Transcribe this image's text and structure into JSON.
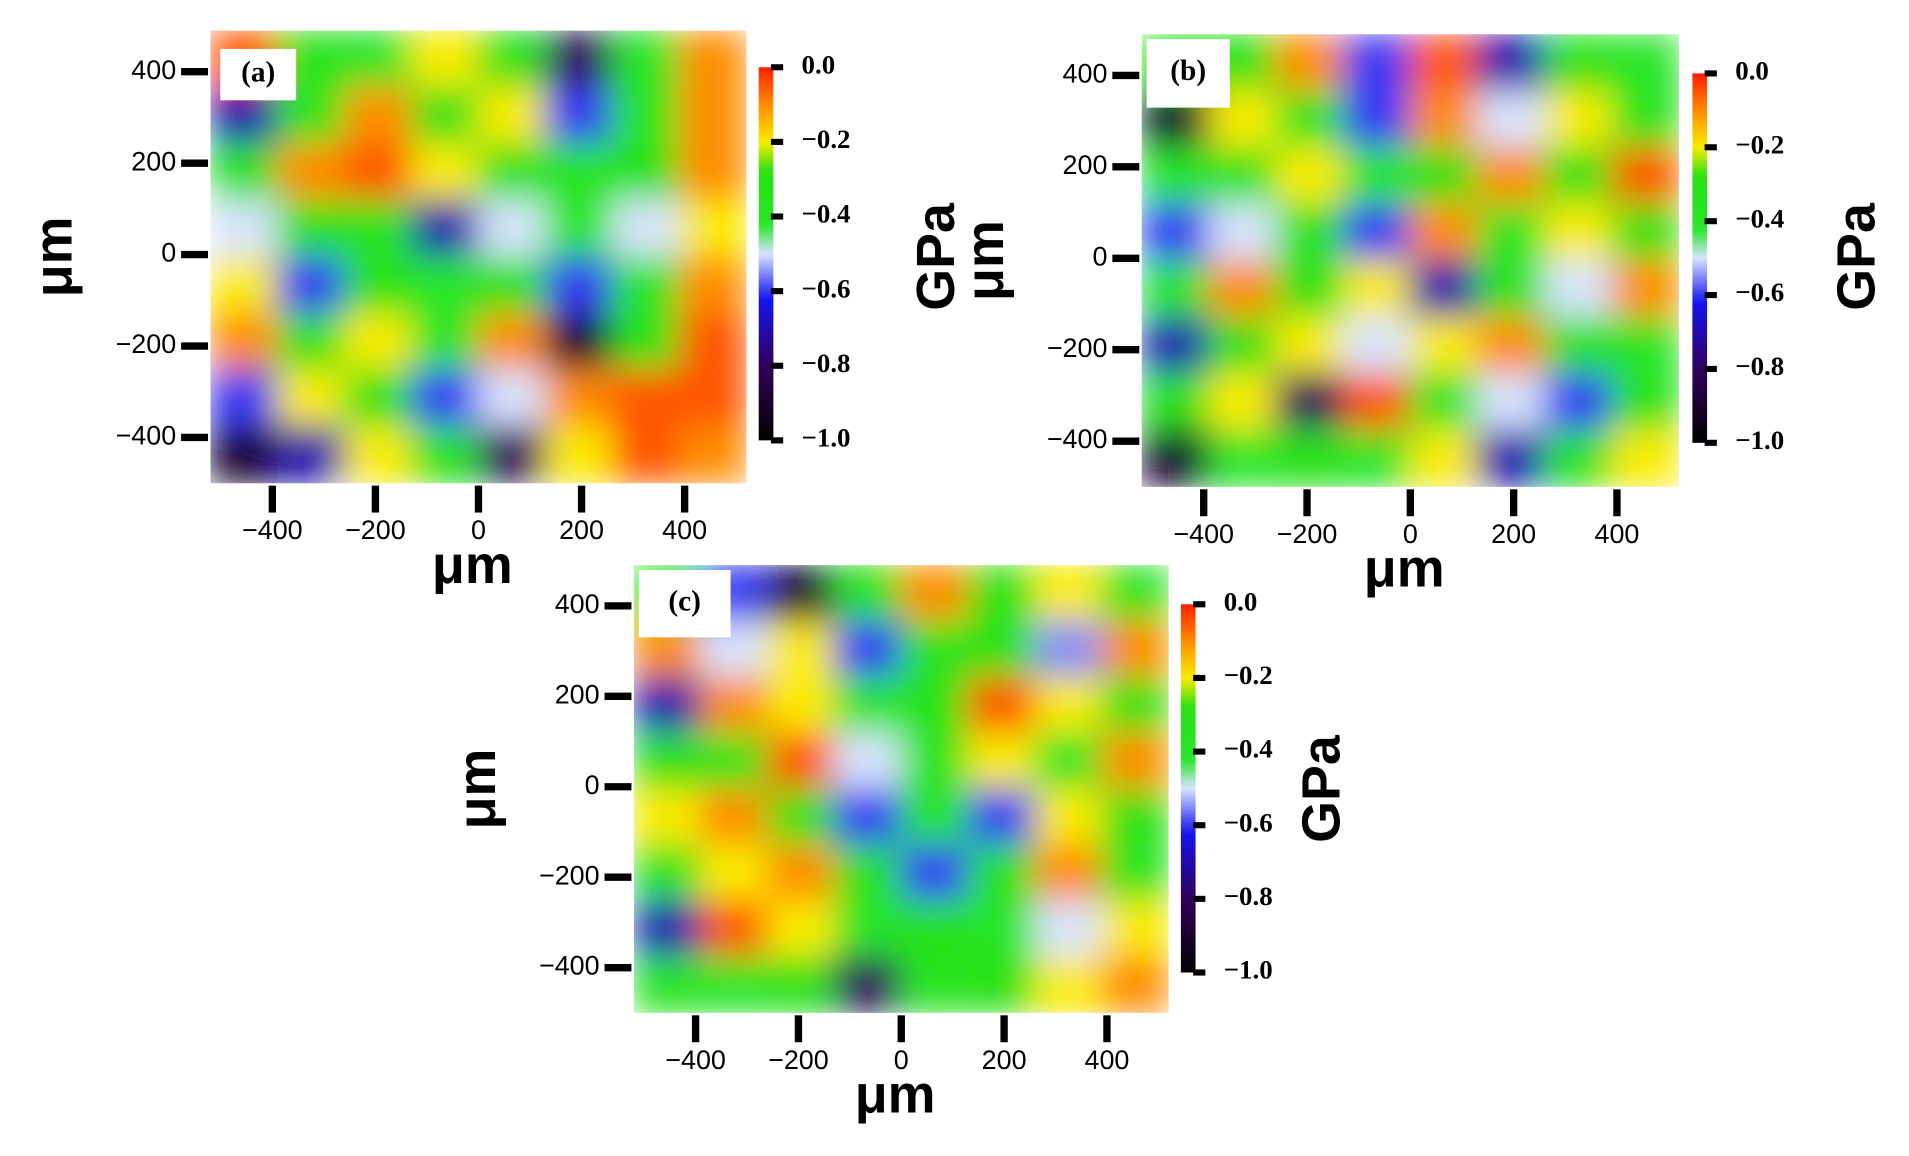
{
  "chart_data": [
    {
      "type": "heatmap",
      "panel_label": "(a)",
      "xlabel": "μm",
      "ylabel": "μm",
      "x": [
        -455,
        -325,
        -195,
        -65,
        65,
        195,
        325,
        455
      ],
      "y": [
        428,
        304,
        180,
        57,
        -67,
        -191,
        -314,
        -438
      ],
      "values": [
        [
          -0.05,
          -0.35,
          -0.4,
          -0.2,
          -0.3,
          -0.8,
          -0.4,
          -0.1
        ],
        [
          -0.7,
          -0.35,
          -0.1,
          -0.3,
          -0.2,
          -0.6,
          -0.35,
          -0.1
        ],
        [
          -0.3,
          -0.1,
          -0.05,
          -0.2,
          -0.3,
          -0.35,
          -0.3,
          -0.1
        ],
        [
          -0.5,
          -0.3,
          -0.35,
          -0.7,
          -0.5,
          -0.4,
          -0.5,
          -0.2
        ],
        [
          -0.2,
          -0.6,
          -0.3,
          -0.4,
          -0.3,
          -0.6,
          -0.4,
          -0.1
        ],
        [
          -0.1,
          -0.3,
          -0.2,
          -0.4,
          -0.1,
          -0.9,
          -0.3,
          -0.05
        ],
        [
          -0.6,
          -0.2,
          -0.3,
          -0.6,
          -0.5,
          -0.1,
          -0.05,
          -0.05
        ],
        [
          -0.9,
          -0.7,
          -0.2,
          -0.3,
          -0.8,
          -0.2,
          -0.05,
          -0.1
        ]
      ],
      "xlim": [
        -520,
        520
      ],
      "ylim": [
        -500,
        490
      ],
      "xticks": [
        {
          "value": -400,
          "label": "−400"
        },
        {
          "value": -200,
          "label": "−200"
        },
        0,
        200,
        400
      ],
      "yticks": [
        {
          "value": -400,
          "label": "−400"
        },
        {
          "value": -200,
          "label": "−200"
        },
        0,
        200,
        400
      ],
      "colorbar": {
        "label": "GPa",
        "lim": [
          -1,
          0
        ],
        "ticks": [
          {
            "value": 0,
            "label": "0.0"
          },
          {
            "value": -0.2,
            "label": "−0.2"
          },
          {
            "value": -0.4,
            "label": "−0.4"
          },
          {
            "value": -0.6,
            "label": "−0.6"
          },
          {
            "value": -0.8,
            "label": "−0.8"
          },
          {
            "value": -1,
            "label": "−1.0"
          }
        ]
      }
    },
    {
      "type": "heatmap",
      "panel_label": "(b)",
      "xlabel": "μm",
      "ylabel": "μm",
      "x": [
        -455,
        -325,
        -195,
        -65,
        65,
        195,
        325,
        455
      ],
      "y": [
        428,
        304,
        180,
        57,
        -67,
        -191,
        -314,
        -438
      ],
      "values": [
        [
          -0.35,
          -0.3,
          -0.1,
          -0.6,
          -0.05,
          -0.7,
          -0.3,
          -0.4
        ],
        [
          -0.9,
          -0.2,
          -0.35,
          -0.6,
          -0.1,
          -0.5,
          -0.2,
          -0.35
        ],
        [
          -0.4,
          -0.3,
          -0.2,
          -0.4,
          -0.3,
          -0.1,
          -0.3,
          -0.05
        ],
        [
          -0.6,
          -0.5,
          -0.3,
          -0.6,
          -0.1,
          -0.4,
          -0.2,
          -0.3
        ],
        [
          -0.4,
          -0.1,
          -0.3,
          -0.2,
          -0.7,
          -0.3,
          -0.5,
          -0.1
        ],
        [
          -0.7,
          -0.3,
          -0.2,
          -0.5,
          -0.2,
          -0.1,
          -0.3,
          -0.4
        ],
        [
          -0.3,
          -0.2,
          -0.8,
          -0.05,
          -0.4,
          -0.5,
          -0.6,
          -0.3
        ],
        [
          -0.9,
          -0.4,
          -0.3,
          -0.4,
          -0.2,
          -0.7,
          -0.3,
          -0.2
        ]
      ],
      "xlim": [
        -520,
        520
      ],
      "ylim": [
        -500,
        490
      ],
      "xticks": [
        {
          "value": -400,
          "label": "−400"
        },
        {
          "value": -200,
          "label": "−200"
        },
        0,
        200,
        400
      ],
      "yticks": [
        {
          "value": -400,
          "label": "−400"
        },
        {
          "value": -200,
          "label": "−200"
        },
        0,
        200,
        400
      ],
      "colorbar": {
        "label": "GPa",
        "lim": [
          -1,
          0
        ],
        "ticks": [
          {
            "value": 0,
            "label": "0.0"
          },
          {
            "value": -0.2,
            "label": "−0.2"
          },
          {
            "value": -0.4,
            "label": "−0.4"
          },
          {
            "value": -0.6,
            "label": "−0.6"
          },
          {
            "value": -0.8,
            "label": "−0.8"
          },
          {
            "value": -1,
            "label": "−1.0"
          }
        ]
      }
    },
    {
      "type": "heatmap",
      "panel_label": "(c)",
      "xlabel": "μm",
      "ylabel": "μm",
      "x": [
        -455,
        -325,
        -195,
        -65,
        65,
        195,
        325,
        455
      ],
      "y": [
        428,
        304,
        180,
        57,
        -67,
        -191,
        -314,
        -438
      ],
      "values": [
        [
          -0.3,
          -0.6,
          -0.9,
          -0.3,
          -0.1,
          -0.3,
          -0.2,
          -0.35
        ],
        [
          -0.1,
          -0.5,
          -0.2,
          -0.6,
          -0.35,
          -0.3,
          -0.55,
          -0.1
        ],
        [
          -0.7,
          -0.1,
          -0.2,
          -0.4,
          -0.3,
          -0.05,
          -0.2,
          -0.3
        ],
        [
          -0.3,
          -0.35,
          -0.05,
          -0.5,
          -0.35,
          -0.2,
          -0.4,
          -0.1
        ],
        [
          -0.2,
          -0.1,
          -0.3,
          -0.6,
          -0.35,
          -0.6,
          -0.2,
          -0.3
        ],
        [
          -0.35,
          -0.2,
          -0.1,
          -0.3,
          -0.6,
          -0.3,
          -0.1,
          -0.35
        ],
        [
          -0.7,
          -0.05,
          -0.2,
          -0.4,
          -0.3,
          -0.4,
          -0.5,
          -0.2
        ],
        [
          -0.35,
          -0.4,
          -0.3,
          -0.8,
          -0.35,
          -0.3,
          -0.2,
          -0.1
        ]
      ],
      "xlim": [
        -520,
        520
      ],
      "ylim": [
        -500,
        490
      ],
      "xticks": [
        {
          "value": -400,
          "label": "−400"
        },
        {
          "value": -200,
          "label": "−200"
        },
        0,
        200,
        400
      ],
      "yticks": [
        {
          "value": -400,
          "label": "−400"
        },
        {
          "value": -200,
          "label": "−200"
        },
        0,
        200,
        400
      ],
      "colorbar": {
        "label": "GPa",
        "lim": [
          -1,
          0
        ],
        "ticks": [
          {
            "value": 0,
            "label": "0.0"
          },
          {
            "value": -0.2,
            "label": "−0.2"
          },
          {
            "value": -0.4,
            "label": "−0.4"
          },
          {
            "value": -0.6,
            "label": "−0.6"
          },
          {
            "value": -0.8,
            "label": "−0.8"
          },
          {
            "value": -1,
            "label": "−1.0"
          }
        ]
      }
    }
  ]
}
